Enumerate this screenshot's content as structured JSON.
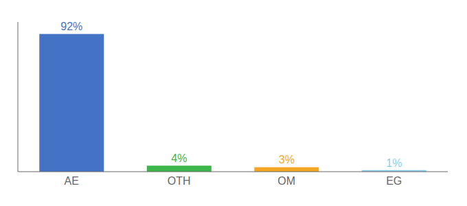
{
  "chart_data": {
    "type": "bar",
    "categories": [
      "AE",
      "OTH",
      "OM",
      "EG"
    ],
    "values": [
      92,
      4,
      3,
      1
    ],
    "value_labels": [
      "92%",
      "4%",
      "3%",
      "1%"
    ],
    "colors": [
      "#4472c4",
      "#3cb54a",
      "#f5a623",
      "#87ceeb"
    ],
    "ylim": [
      0,
      100
    ],
    "data_labels": true,
    "tick_labels": "x",
    "grid": false
  }
}
